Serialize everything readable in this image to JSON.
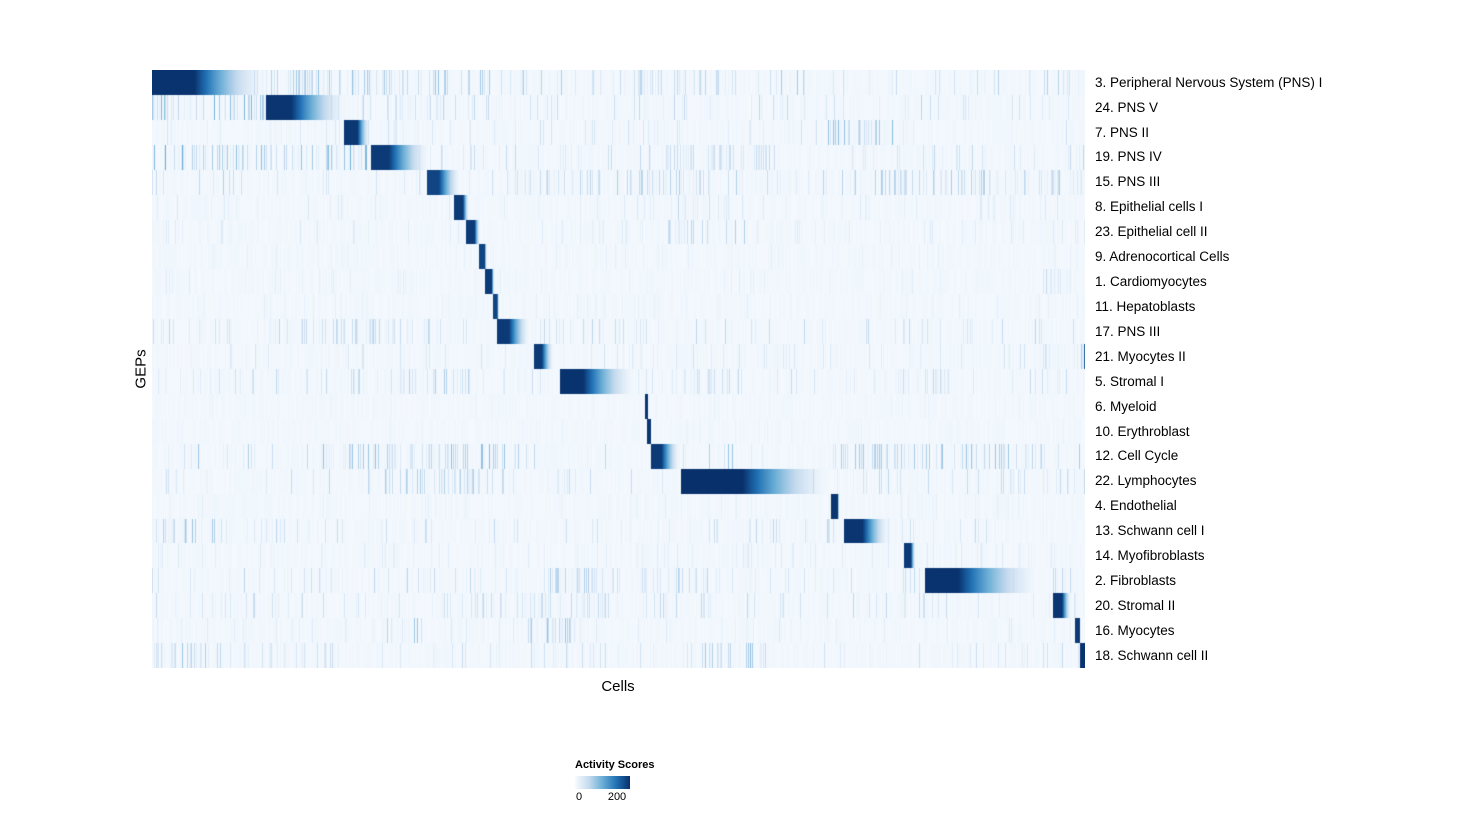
{
  "chart_data": {
    "type": "heatmap",
    "title": "",
    "xlabel": "Cells",
    "ylabel": "GEPs",
    "colormap": "Blues",
    "colormap_stops": [
      "#f7fbff",
      "#c6dbef",
      "#6baed6",
      "#2171b5",
      "#08306b"
    ],
    "vmax": 255,
    "n_rows": 24,
    "legend": {
      "title": "Activity Scores",
      "ticks": [
        "0",
        "200"
      ],
      "tick_values": [
        0,
        200
      ]
    },
    "rows": [
      {
        "label": "3. Peripheral Nervous System (PNS) I",
        "seed": 11,
        "noise": 0.38,
        "block": {
          "start": 0.0,
          "end": 0.125,
          "peak": 252,
          "flat": 0.36
        },
        "patches": [
          [
            0.13,
            0.33,
            0.45
          ],
          [
            0.5,
            0.63,
            0.3
          ]
        ]
      },
      {
        "label": "24. PNS V",
        "seed": 22,
        "noise": 0.3,
        "block": {
          "start": 0.122,
          "end": 0.212,
          "peak": 250,
          "flat": 0.3
        },
        "patches": [
          [
            0.0,
            0.12,
            0.5
          ],
          [
            0.25,
            0.33,
            0.3
          ]
        ]
      },
      {
        "label": "7. PNS II",
        "seed": 33,
        "noise": 0.22,
        "block": {
          "start": 0.206,
          "end": 0.234,
          "peak": 248,
          "flat": 0.5
        },
        "patches": [
          [
            0.72,
            0.8,
            0.5
          ]
        ]
      },
      {
        "label": "19. PNS IV",
        "seed": 44,
        "noise": 0.3,
        "block": {
          "start": 0.234,
          "end": 0.3,
          "peak": 245,
          "flat": 0.3
        },
        "patches": [
          [
            0.0,
            0.23,
            0.55
          ],
          [
            0.55,
            0.66,
            0.3
          ]
        ]
      },
      {
        "label": "15. PNS III",
        "seed": 55,
        "noise": 0.35,
        "block": {
          "start": 0.294,
          "end": 0.332,
          "peak": 235,
          "flat": 0.35
        },
        "patches": [
          [
            0.38,
            0.62,
            0.35
          ],
          [
            0.74,
            1.0,
            0.35
          ]
        ]
      },
      {
        "label": "8. Epithelial cells I",
        "seed": 66,
        "noise": 0.15,
        "block": {
          "start": 0.323,
          "end": 0.34,
          "peak": 245,
          "flat": 0.6
        },
        "patches": [
          [
            0.55,
            0.62,
            0.3
          ]
        ]
      },
      {
        "label": "23. Epithelial cell II",
        "seed": 77,
        "noise": 0.15,
        "block": {
          "start": 0.336,
          "end": 0.352,
          "peak": 245,
          "flat": 0.6
        },
        "patches": [
          [
            0.55,
            0.64,
            0.35
          ]
        ]
      },
      {
        "label": "9. Adrenocortical Cells",
        "seed": 88,
        "noise": 0.1,
        "block": {
          "start": 0.35,
          "end": 0.359,
          "peak": 235,
          "flat": 0.7
        },
        "patches": []
      },
      {
        "label": "1. Cardiomyocytes",
        "seed": 99,
        "noise": 0.12,
        "block": {
          "start": 0.357,
          "end": 0.367,
          "peak": 245,
          "flat": 0.7
        },
        "patches": [
          [
            0.955,
            0.975,
            0.5
          ]
        ]
      },
      {
        "label": "11. Hepatoblasts",
        "seed": 110,
        "noise": 0.1,
        "block": {
          "start": 0.365,
          "end": 0.372,
          "peak": 235,
          "flat": 0.7
        },
        "patches": []
      },
      {
        "label": "17. PNS III",
        "seed": 121,
        "noise": 0.3,
        "block": {
          "start": 0.37,
          "end": 0.406,
          "peak": 245,
          "flat": 0.35
        },
        "patches": [
          [
            0.0,
            0.008,
            0.95
          ],
          [
            0.18,
            0.3,
            0.3
          ]
        ]
      },
      {
        "label": "21. Myocytes II",
        "seed": 132,
        "noise": 0.2,
        "block": {
          "start": 0.409,
          "end": 0.431,
          "peak": 245,
          "flat": 0.4
        },
        "patches": [
          [
            0.992,
            1.0,
            0.95
          ]
        ]
      },
      {
        "label": "5. Stromal I",
        "seed": 143,
        "noise": 0.3,
        "block": {
          "start": 0.437,
          "end": 0.521,
          "peak": 252,
          "flat": 0.3
        },
        "patches": [
          [
            0.2,
            0.34,
            0.35
          ],
          [
            0.53,
            0.62,
            0.3
          ],
          [
            0.8,
            0.88,
            0.3
          ]
        ]
      },
      {
        "label": "6. Myeloid",
        "seed": 154,
        "noise": 0.08,
        "block": {
          "start": 0.528,
          "end": 0.532,
          "peak": 250,
          "flat": 1.0
        },
        "patches": []
      },
      {
        "label": "10. Erythroblast",
        "seed": 165,
        "noise": 0.08,
        "block": {
          "start": 0.531,
          "end": 0.535,
          "peak": 250,
          "flat": 1.0
        },
        "patches": []
      },
      {
        "label": "12. Cell Cycle",
        "seed": 176,
        "noise": 0.4,
        "block": {
          "start": 0.535,
          "end": 0.567,
          "peak": 245,
          "flat": 0.35
        },
        "patches": [
          [
            0.18,
            0.38,
            0.45
          ],
          [
            0.75,
            0.95,
            0.4
          ]
        ]
      },
      {
        "label": "22. Lymphocytes",
        "seed": 187,
        "noise": 0.3,
        "block": {
          "start": 0.567,
          "end": 0.732,
          "peak": 255,
          "flat": 0.4
        },
        "patches": [
          [
            0.25,
            0.36,
            0.35
          ]
        ]
      },
      {
        "label": "4. Endothelial",
        "seed": 198,
        "noise": 0.1,
        "block": {
          "start": 0.728,
          "end": 0.737,
          "peak": 250,
          "flat": 0.8
        },
        "patches": []
      },
      {
        "label": "13. Schwann cell I",
        "seed": 209,
        "noise": 0.3,
        "block": {
          "start": 0.742,
          "end": 0.792,
          "peak": 250,
          "flat": 0.4
        },
        "patches": [
          [
            0.0,
            0.08,
            0.4
          ]
        ]
      },
      {
        "label": "14. Myofibroblasts",
        "seed": 220,
        "noise": 0.15,
        "block": {
          "start": 0.806,
          "end": 0.819,
          "peak": 245,
          "flat": 0.6
        },
        "patches": []
      },
      {
        "label": "2. Fibroblasts",
        "seed": 231,
        "noise": 0.3,
        "block": {
          "start": 0.829,
          "end": 0.956,
          "peak": 252,
          "flat": 0.28
        },
        "patches": [
          [
            0.42,
            0.6,
            0.35
          ]
        ]
      },
      {
        "label": "20. Stromal II",
        "seed": 242,
        "noise": 0.3,
        "block": {
          "start": 0.966,
          "end": 0.986,
          "peak": 250,
          "flat": 0.5
        },
        "patches": [
          [
            0.3,
            0.5,
            0.3
          ]
        ]
      },
      {
        "label": "16. Myocytes",
        "seed": 253,
        "noise": 0.15,
        "block": {
          "start": 0.99,
          "end": 0.995,
          "peak": 245,
          "flat": 1.0
        },
        "patches": [
          [
            0.25,
            0.29,
            0.4
          ],
          [
            0.4,
            0.45,
            0.4
          ]
        ]
      },
      {
        "label": "18. Schwann cell II",
        "seed": 264,
        "noise": 0.3,
        "block": {
          "start": 0.995,
          "end": 1.0,
          "peak": 252,
          "flat": 1.0
        },
        "patches": [
          [
            0.0,
            0.06,
            0.4
          ],
          [
            0.58,
            0.66,
            0.45
          ]
        ]
      }
    ]
  }
}
